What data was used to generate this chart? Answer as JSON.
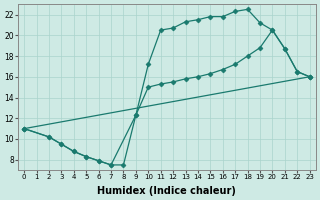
{
  "xlabel": "Humidex (Indice chaleur)",
  "xlim": [
    -0.5,
    23.5
  ],
  "ylim": [
    7.0,
    23.0
  ],
  "yticks": [
    8,
    10,
    12,
    14,
    16,
    18,
    20,
    22
  ],
  "xticks": [
    0,
    1,
    2,
    3,
    4,
    5,
    6,
    7,
    8,
    9,
    10,
    11,
    12,
    13,
    14,
    15,
    16,
    17,
    18,
    19,
    20,
    21,
    22,
    23
  ],
  "bg_color": "#ceeae4",
  "line_color": "#1a7a6e",
  "grid_color": "#aad4cc",
  "line1_x": [
    0,
    2,
    3,
    4,
    5,
    6,
    7,
    8,
    9,
    10,
    11,
    12,
    13,
    14,
    15,
    16,
    17,
    18,
    19,
    20,
    21,
    22,
    23
  ],
  "line1_y": [
    11,
    10.2,
    9.5,
    8.8,
    8.3,
    7.9,
    7.5,
    7.5,
    12.3,
    17.2,
    20.5,
    20.7,
    21.3,
    21.5,
    21.8,
    21.8,
    22.3,
    22.5,
    21.2,
    20.5,
    18.7,
    16.5,
    16.0
  ],
  "line2_x": [
    0,
    2,
    3,
    4,
    5,
    6,
    7,
    9,
    10,
    11,
    12,
    13,
    14,
    15,
    16,
    17,
    18,
    19,
    20,
    21,
    22,
    23
  ],
  "line2_y": [
    11,
    10.2,
    9.5,
    8.8,
    8.3,
    7.9,
    7.5,
    12.3,
    15.0,
    15.3,
    15.5,
    15.8,
    16.0,
    16.3,
    16.7,
    17.2,
    18.0,
    18.8,
    20.5,
    18.7,
    16.5,
    16.0
  ],
  "line3_x": [
    0,
    23
  ],
  "line3_y": [
    11,
    16.0
  ]
}
